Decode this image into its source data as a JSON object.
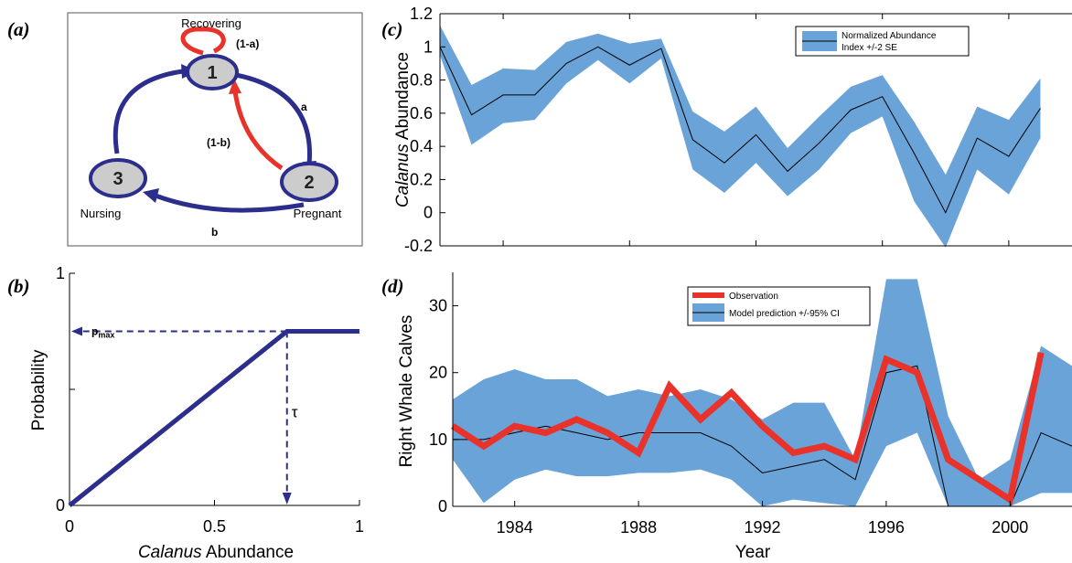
{
  "panel_labels": {
    "a": "(a)",
    "b": "(b)",
    "c": "(c)",
    "d": "(d)"
  },
  "diagram": {
    "states": [
      {
        "id": "1",
        "label": "Recovering"
      },
      {
        "id": "2",
        "label": "Pregnant"
      },
      {
        "id": "3",
        "label": "Nursing"
      }
    ],
    "transitions": {
      "self_1": "(1-a)",
      "t_1_2": "a",
      "t_2_1": "(1-b)",
      "t_2_3": "b"
    },
    "colors": {
      "blue": "#2b2e8c",
      "red": "#e8322a",
      "node_fill": "#cccccc"
    }
  },
  "chart_data": [
    {
      "id": "b",
      "type": "line",
      "xlabel_italic": "Calanus",
      "xlabel_rest": " Abundance",
      "ylabel": "Probability",
      "xlim": [
        0,
        1
      ],
      "ylim": [
        0,
        1
      ],
      "xticks": [
        "0",
        "0.5",
        "1"
      ],
      "yticks": [
        "0",
        "1"
      ],
      "y_minor_ticks": [
        0.5
      ],
      "series": [
        {
          "x": [
            0,
            0.75,
            1
          ],
          "y": [
            0,
            0.75,
            0.75
          ]
        }
      ],
      "annotations": {
        "pmax": "p",
        "pmax_sub": "max",
        "tau": "τ",
        "pmax_value": 0.75,
        "tau_value": 0.75
      },
      "color": "#2b2e8c"
    },
    {
      "id": "c",
      "type": "area",
      "ylabel_italic": "Calanus",
      "ylabel_rest": " Abundance",
      "xlim": [
        1982,
        2002
      ],
      "ylim": [
        -0.2,
        1.2
      ],
      "yticks": [
        "-0.2",
        "0",
        "0.2",
        "0.4",
        "0.6",
        "0.8",
        "1",
        "1.2"
      ],
      "x": [
        1982,
        1983,
        1984,
        1985,
        1986,
        1987,
        1988,
        1989,
        1990,
        1991,
        1992,
        1993,
        1994,
        1995,
        1996,
        1997,
        1998,
        1999,
        2000,
        2001
      ],
      "mean": [
        1.0,
        0.59,
        0.71,
        0.71,
        0.9,
        1.0,
        0.89,
        0.99,
        0.44,
        0.3,
        0.47,
        0.25,
        0.42,
        0.62,
        0.7,
        0.36,
        0.0,
        0.45,
        0.34,
        0.63
      ],
      "upper": [
        1.13,
        0.77,
        0.87,
        0.86,
        1.03,
        1.08,
        1.02,
        1.05,
        0.61,
        0.49,
        0.64,
        0.39,
        0.58,
        0.76,
        0.83,
        0.55,
        0.23,
        0.64,
        0.56,
        0.81
      ],
      "lower": [
        0.95,
        0.41,
        0.54,
        0.56,
        0.78,
        0.92,
        0.78,
        0.93,
        0.26,
        0.12,
        0.3,
        0.1,
        0.26,
        0.48,
        0.58,
        0.07,
        -0.21,
        0.26,
        0.11,
        0.45
      ],
      "legend": {
        "line1": "Normalized Abundance",
        "line2": "Index +/-2 SE"
      },
      "band_color": "#6aa3d8"
    },
    {
      "id": "d",
      "type": "line",
      "ylabel": "Right Whale Calves",
      "xlabel": "Year",
      "xlim": [
        1982,
        2002
      ],
      "ylim": [
        0,
        35
      ],
      "yticks": [
        "0",
        "10",
        "20",
        "30"
      ],
      "xticks": [
        "1984",
        "1988",
        "1992",
        "1996",
        "2000"
      ],
      "xtick_values": [
        1984,
        1988,
        1992,
        1996,
        2000
      ],
      "x": [
        1982,
        1983,
        1984,
        1985,
        1986,
        1987,
        1988,
        1989,
        1990,
        1991,
        1992,
        1993,
        1994,
        1995,
        1996,
        1997,
        1998,
        1999,
        2000,
        2001,
        2002
      ],
      "observation": [
        12,
        9,
        12,
        11,
        13,
        11,
        8,
        18,
        13,
        17,
        12,
        8,
        9,
        7,
        22,
        20,
        7,
        4,
        1,
        23,
        null
      ],
      "model": [
        10,
        10,
        11,
        12,
        11,
        10,
        11,
        11,
        11,
        9,
        5,
        6,
        7,
        4,
        20,
        21,
        0,
        0,
        0,
        11,
        9
      ],
      "ci_upper": [
        16,
        19,
        20.5,
        19,
        19,
        16.5,
        17.5,
        16.5,
        17.5,
        16,
        13,
        15.5,
        15.5,
        7,
        34,
        34,
        13.5,
        4,
        7,
        24,
        21
      ],
      "ci_lower": [
        7,
        0.5,
        4,
        5.5,
        4.5,
        4.5,
        5,
        5,
        5.5,
        4,
        0,
        1,
        0.5,
        0,
        9,
        11,
        0,
        0,
        0,
        2,
        2
      ],
      "legend": {
        "obs": "Observation",
        "model": "Model prediction +/-95% CI"
      },
      "obs_color": "#e8322a",
      "band_color": "#6aa3d8"
    }
  ]
}
